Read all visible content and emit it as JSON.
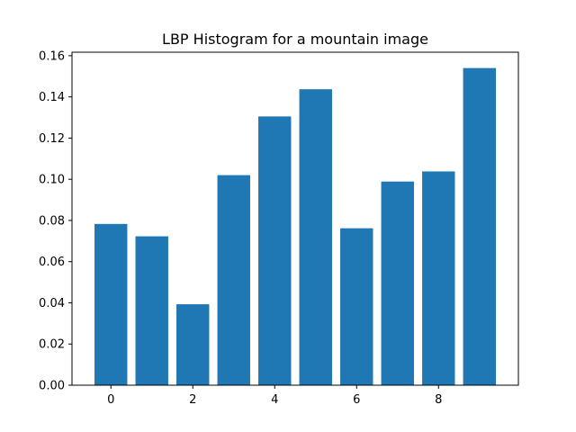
{
  "chart_data": {
    "type": "bar",
    "title": "LBP Histogram for a mountain image",
    "xlabel": "",
    "ylabel": "",
    "x": [
      0,
      1,
      2,
      3,
      4,
      5,
      6,
      7,
      8,
      9
    ],
    "values": [
      0.0783,
      0.0723,
      0.0393,
      0.102,
      0.1305,
      0.1437,
      0.0762,
      0.0989,
      0.1038,
      0.154
    ],
    "xlim": [
      -0.95,
      9.95
    ],
    "ylim": [
      0,
      0.1617
    ],
    "xticks": [
      0,
      2,
      4,
      6,
      8
    ],
    "xtick_labels": [
      "0",
      "2",
      "4",
      "6",
      "8"
    ],
    "yticks": [
      0,
      0.02,
      0.04,
      0.06,
      0.08,
      0.1,
      0.12,
      0.14,
      0.16
    ],
    "ytick_labels": [
      "0.00",
      "0.02",
      "0.04",
      "0.06",
      "0.08",
      "0.10",
      "0.12",
      "0.14",
      "0.16"
    ],
    "bar_color": "#1f77b4",
    "grid": false,
    "legend": false
  }
}
